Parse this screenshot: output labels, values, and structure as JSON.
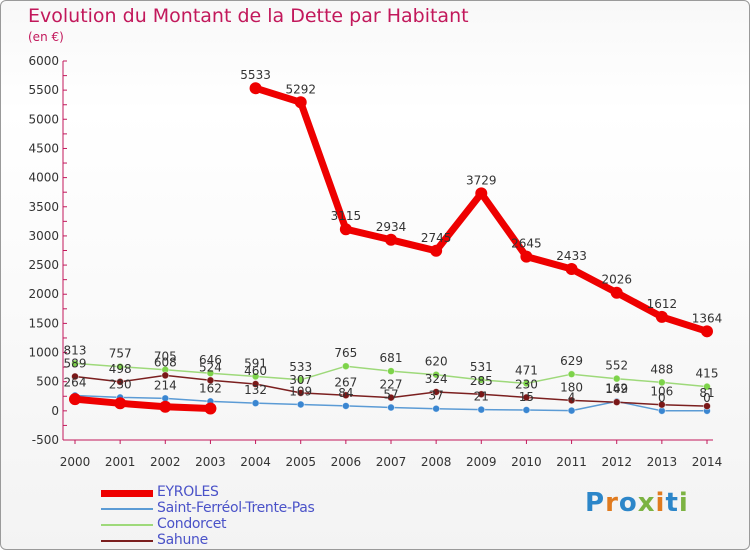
{
  "header": {
    "title": "Evolution du Montant de la Dette par Habitant",
    "subtitle": "(en €)"
  },
  "brand": {
    "text": "Proxiti",
    "letter_colors": [
      "#2c86c9",
      "#e07b1f",
      "#2c86c9",
      "#7cb342",
      "#e07b1f",
      "#2c86c9",
      "#7cb342"
    ]
  },
  "chart_data": {
    "type": "line",
    "title": "Evolution du Montant de la Dette par Habitant",
    "ylabel": "(en €)",
    "ylim": [
      -500,
      6000
    ],
    "yticks": [
      -500,
      0,
      500,
      1000,
      1500,
      2000,
      2500,
      3000,
      3500,
      4000,
      4500,
      5000,
      5500,
      6000
    ],
    "x": [
      "2000",
      "2001",
      "2002",
      "2003",
      "2004",
      "2005",
      "2006",
      "2007",
      "2008",
      "2009",
      "2010",
      "2011",
      "2012",
      "2013",
      "2014"
    ],
    "grid": false,
    "legend_position": "bottom-left",
    "series": [
      {
        "name": "EYROLES",
        "color": "#ee0000",
        "marker_color": "#ee0000",
        "width": 7,
        "segments": [
          [
            0,
            3
          ],
          [
            4,
            14
          ]
        ],
        "values": [
          200,
          130,
          70,
          40,
          5533,
          5292,
          3115,
          2934,
          2745,
          3729,
          2645,
          2433,
          2026,
          1612,
          1364
        ],
        "labels": [
          "",
          "",
          "",
          "",
          "5533",
          "5292",
          "3115",
          "2934",
          "2745",
          "3729",
          "2645",
          "2433",
          "2026",
          "1612",
          "1364"
        ]
      },
      {
        "name": "Saint-Ferréol-Trente-Pas",
        "color": "#5b9bd5",
        "marker_color": "#3a86d1",
        "width": 1.5,
        "values": [
          264,
          230,
          214,
          162,
          132,
          109,
          84,
          57,
          37,
          21,
          15,
          4,
          162,
          0,
          0
        ],
        "labels": [
          "264",
          "230",
          "214",
          "162",
          "132",
          "109",
          "84",
          "57",
          "37",
          "21",
          "15",
          "4",
          "162",
          "0",
          "0"
        ]
      },
      {
        "name": "Condorcet",
        "color": "#9ed97a",
        "marker_color": "#7dd34a",
        "width": 1.5,
        "values": [
          813,
          757,
          705,
          646,
          591,
          533,
          765,
          681,
          620,
          531,
          471,
          629,
          552,
          488,
          415
        ],
        "labels": [
          "813",
          "757",
          "705",
          "646",
          "591",
          "533",
          "765",
          "681",
          "620",
          "531",
          "471",
          "629",
          "552",
          "488",
          "415"
        ]
      },
      {
        "name": "Sahune",
        "color": "#7b1f1f",
        "marker_color": "#7a1717",
        "width": 1.5,
        "values": [
          589,
          498,
          608,
          524,
          460,
          307,
          267,
          227,
          324,
          285,
          230,
          180,
          149,
          106,
          81
        ],
        "labels": [
          "589",
          "498",
          "608",
          "524",
          "460",
          "307",
          "267",
          "227",
          "324",
          "285",
          "230",
          "180",
          "149",
          "106",
          "81"
        ]
      }
    ]
  },
  "legend": {
    "items": [
      {
        "label": "EYROLES",
        "color": "#ee0000",
        "thickness": 7
      },
      {
        "label": "Saint-Ferréol-Trente-Pas",
        "color": "#5b9bd5",
        "thickness": 2
      },
      {
        "label": "Condorcet",
        "color": "#9ed97a",
        "thickness": 2
      },
      {
        "label": "Sahune",
        "color": "#7b1f1f",
        "thickness": 2
      }
    ]
  }
}
